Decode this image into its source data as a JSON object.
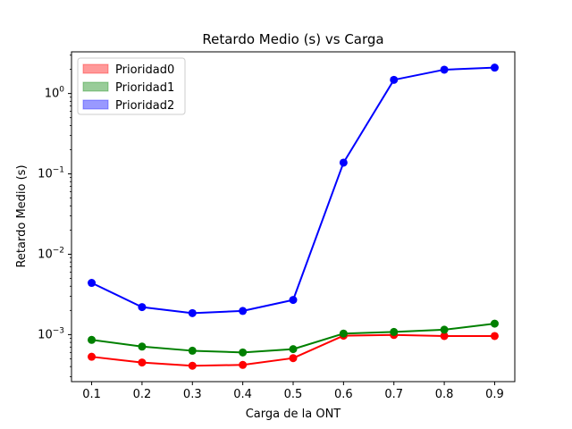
{
  "chart_data": {
    "type": "line",
    "title": "Retardo Medio (s) vs Carga",
    "xlabel": "Carga de la ONT",
    "ylabel": "Retardo Medio (s)",
    "yscale": "log",
    "x": [
      0.1,
      0.2,
      0.3,
      0.4,
      0.5,
      0.6,
      0.7,
      0.8,
      0.9
    ],
    "xticks": [
      "0.1",
      "0.2",
      "0.3",
      "0.4",
      "0.5",
      "0.6",
      "0.7",
      "0.8",
      "0.9"
    ],
    "yticks": [
      {
        "mantissa": "10",
        "exp": "−3",
        "value": 0.001
      },
      {
        "mantissa": "10",
        "exp": "−2",
        "value": 0.01
      },
      {
        "mantissa": "10",
        "exp": "−1",
        "value": 0.1
      },
      {
        "mantissa": "10",
        "exp": "0",
        "value": 1
      }
    ],
    "ylim": [
      0.00026,
      3.3
    ],
    "xlim": [
      0.06,
      0.94
    ],
    "legend_position": "upper-left",
    "series": [
      {
        "name": "Prioridad0",
        "color": "#ff0000",
        "legend_color": "#ff9999",
        "values": [
          0.00053,
          0.00045,
          0.00041,
          0.00042,
          0.00051,
          0.00097,
          0.00099,
          0.00096,
          0.00096
        ]
      },
      {
        "name": "Prioridad1",
        "color": "#008000",
        "legend_color": "#99cc99",
        "values": [
          0.00086,
          0.00071,
          0.00063,
          0.0006,
          0.00066,
          0.00103,
          0.00108,
          0.00115,
          0.00137
        ]
      },
      {
        "name": "Prioridad2",
        "color": "#0000ff",
        "legend_color": "#9999ff",
        "values": [
          0.0044,
          0.0022,
          0.00185,
          0.00197,
          0.0027,
          0.138,
          1.48,
          1.98,
          2.1
        ]
      }
    ]
  }
}
